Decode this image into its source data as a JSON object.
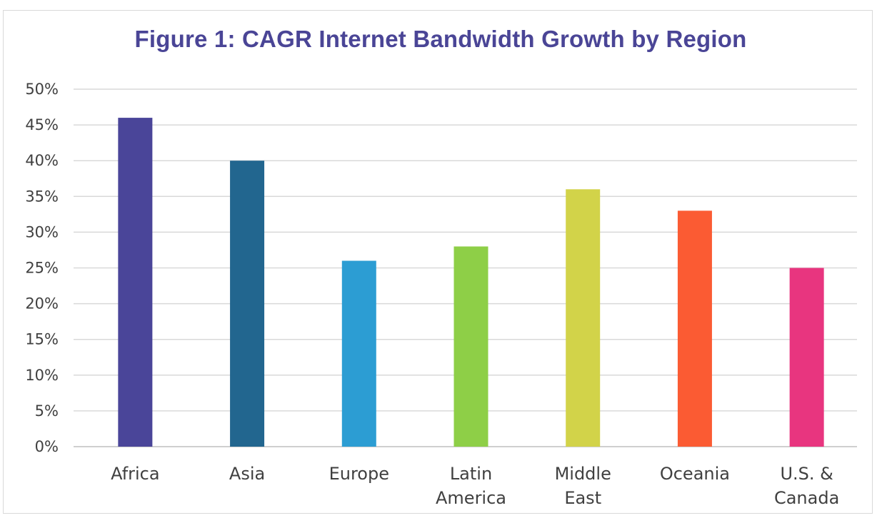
{
  "chart_data": {
    "type": "bar",
    "title": "Figure 1: CAGR Internet Bandwidth Growth by Region",
    "xlabel": "",
    "ylabel": "",
    "categories": [
      [
        "Africa"
      ],
      [
        "Asia"
      ],
      [
        "Europe"
      ],
      [
        "Latin",
        "America"
      ],
      [
        "Middle",
        "East"
      ],
      [
        "Oceania"
      ],
      [
        "U.S. &",
        "Canada"
      ]
    ],
    "values": [
      46,
      40,
      26,
      28,
      36,
      33,
      25
    ],
    "colors": [
      "#4a4599",
      "#22668f",
      "#2c9dd3",
      "#8ecf47",
      "#d2d349",
      "#fb5b33",
      "#e8357f"
    ],
    "ylim": [
      0,
      50
    ],
    "yticks": [
      "0%",
      "5%",
      "10%",
      "15%",
      "20%",
      "25%",
      "30%",
      "35%",
      "40%",
      "45%",
      "50%"
    ],
    "grid": true,
    "legend": "none"
  }
}
